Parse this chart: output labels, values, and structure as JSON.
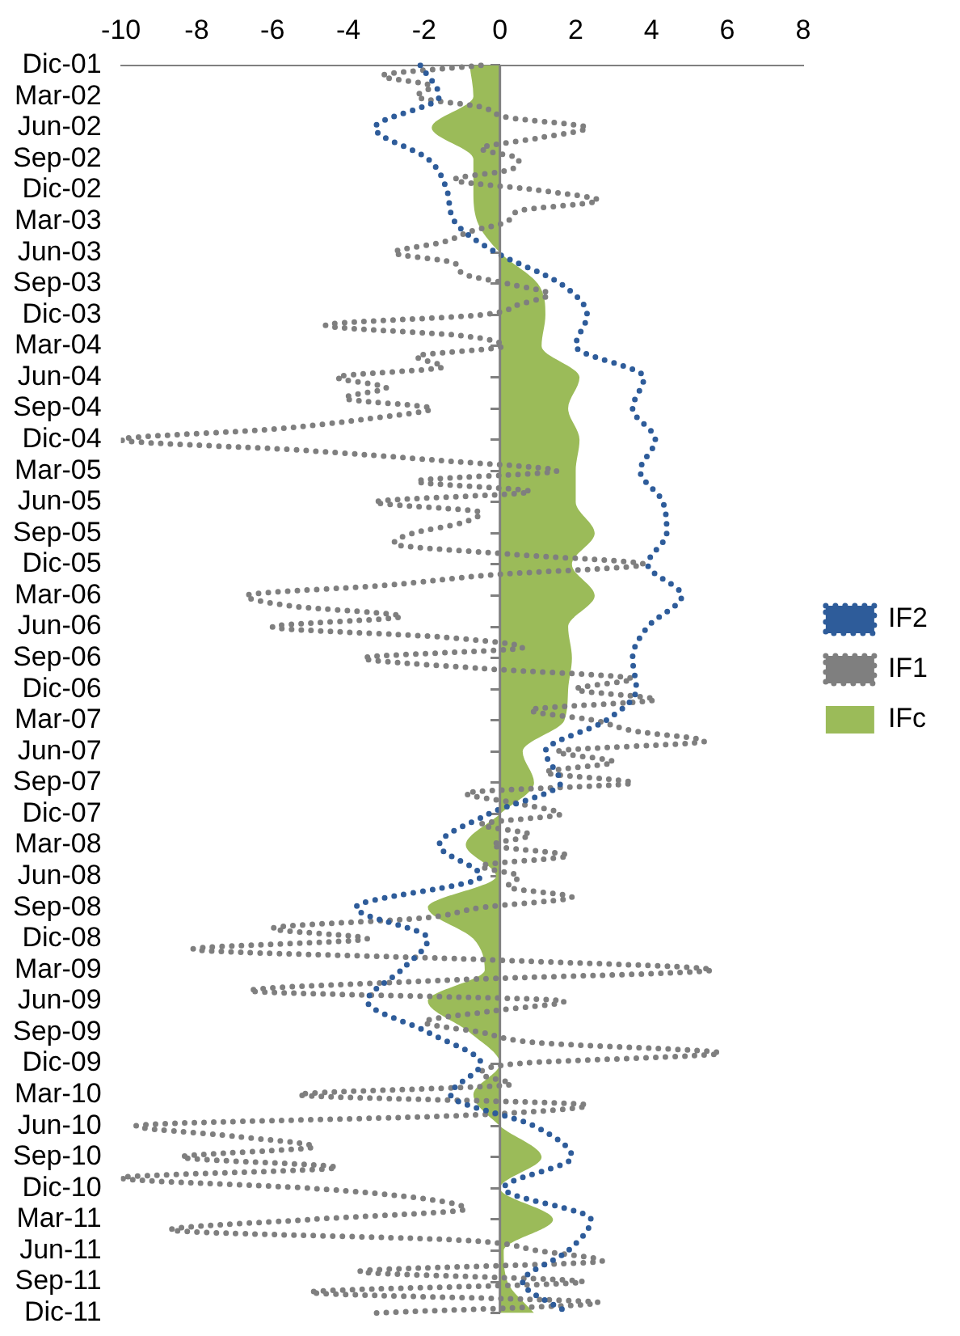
{
  "chart_data": {
    "type": "line",
    "orientation": "horizontal",
    "categories": [
      "Dic-01",
      null,
      null,
      "Mar-02",
      null,
      null,
      "Jun-02",
      null,
      null,
      "Sep-02",
      null,
      null,
      "Dic-02",
      null,
      null,
      "Mar-03",
      null,
      null,
      "Jun-03",
      null,
      null,
      "Sep-03",
      null,
      null,
      "Dic-03",
      null,
      null,
      "Mar-04",
      null,
      null,
      "Jun-04",
      null,
      null,
      "Sep-04",
      null,
      null,
      "Dic-04",
      null,
      null,
      "Mar-05",
      null,
      null,
      "Jun-05",
      null,
      null,
      "Sep-05",
      null,
      null,
      "Dic-05",
      null,
      null,
      "Mar-06",
      null,
      null,
      "Jun-06",
      null,
      null,
      "Sep-06",
      null,
      null,
      "Dic-06",
      null,
      null,
      "Mar-07",
      null,
      null,
      "Jun-07",
      null,
      null,
      "Sep-07",
      null,
      null,
      "Dic-07",
      null,
      null,
      "Mar-08",
      null,
      null,
      "Jun-08",
      null,
      null,
      "Sep-08",
      null,
      null,
      "Dic-08",
      null,
      null,
      "Mar-09",
      null,
      null,
      "Jun-09",
      null,
      null,
      "Sep-09",
      null,
      null,
      "Dic-09",
      null,
      null,
      "Mar-10",
      null,
      null,
      "Jun-10",
      null,
      null,
      "Sep-10",
      null,
      null,
      "Dic-10",
      null,
      null,
      "Mar-11",
      null,
      null,
      "Jun-11",
      null,
      null,
      "Sep-11",
      null,
      null,
      "Dic-11"
    ],
    "series": [
      {
        "name": "IFc",
        "type": "area",
        "color": "#9bbb59",
        "values": [
          -0.8,
          null,
          null,
          -0.7,
          null,
          null,
          -1.8,
          null,
          null,
          -0.7,
          null,
          null,
          -0.7,
          null,
          null,
          -0.6,
          null,
          null,
          0,
          null,
          null,
          1.0,
          null,
          null,
          1.2,
          null,
          null,
          1.1,
          null,
          null,
          2.1,
          null,
          null,
          1.8,
          null,
          null,
          2.1,
          null,
          null,
          2.0,
          null,
          null,
          2.0,
          null,
          null,
          2.5,
          null,
          null,
          1.9,
          null,
          null,
          2.5,
          null,
          null,
          1.8,
          null,
          null,
          1.9,
          null,
          null,
          1.8,
          null,
          null,
          1.7,
          null,
          null,
          0.6,
          null,
          null,
          0.9,
          null,
          null,
          0,
          null,
          null,
          -0.9,
          null,
          null,
          -0.1,
          null,
          null,
          -1.9,
          null,
          null,
          -0.7,
          null,
          null,
          -0.4,
          null,
          null,
          -1.9,
          null,
          null,
          -0.8,
          null,
          null,
          0,
          null,
          null,
          -0.7,
          null,
          null,
          0,
          null,
          null,
          1.1,
          null,
          null,
          0,
          null,
          null,
          1.4,
          null,
          null,
          0.1,
          null,
          null,
          0.2,
          null,
          null,
          0.9
        ]
      },
      {
        "name": "IF1",
        "type": "line",
        "color": "#7f7f7f",
        "line_style": "dotted",
        "values": [
          -0.5,
          -3.1,
          -1.8,
          -2.2,
          -0.5,
          0.2,
          2.3,
          1.0,
          -0.5,
          0.5,
          0.3,
          -1.2,
          1.0,
          2.6,
          0.5,
          0.2,
          -0.8,
          -1.5,
          -2.8,
          -1.2,
          -1.0,
          0.2,
          1.3,
          0.5,
          -0.5,
          -4.6,
          -1.0,
          0.1,
          -2.2,
          -1.5,
          -4.3,
          -3.0,
          -4.1,
          -1.8,
          -3.5,
          -6.0,
          -10.0,
          -5.3,
          -1.6,
          1.5,
          -2.2,
          0.8,
          -3.3,
          -0.5,
          -1.0,
          -2.3,
          -2.8,
          0.2,
          3.8,
          -0.2,
          -3.0,
          -6.7,
          -5.5,
          -2.6,
          -6.0,
          -1.5,
          0.6,
          -3.6,
          -0.5,
          3.5,
          2.0,
          4.1,
          0.8,
          2.5,
          3.5,
          5.4,
          1.5,
          3.0,
          1.2,
          3.5,
          -0.9,
          0.5,
          1.6,
          -0.5,
          0.8,
          -0.2,
          1.8,
          -0.5,
          0.5,
          0.2,
          1.9,
          -0.5,
          -2.0,
          -6.0,
          -3.5,
          -8.1,
          -0.5,
          5.6,
          -1.5,
          -6.6,
          1.7,
          -0.3,
          -2.0,
          -0.5,
          1.0,
          5.8,
          0.5,
          -0.5,
          0.3,
          -5.3,
          2.3,
          -1.0,
          -9.6,
          -7.0,
          -4.9,
          -8.4,
          -4.3,
          -10.0,
          -5.0,
          -2.0,
          -0.9,
          -5.0,
          -8.7,
          -1.0,
          1.0,
          2.7,
          -3.7,
          2.2,
          -5.0,
          2.6,
          -3.3
        ]
      },
      {
        "name": "IF2",
        "type": "line",
        "color": "#2e5c9a",
        "line_style": "dotted",
        "values": [
          -2.1,
          null,
          null,
          -1.6,
          null,
          null,
          -3.3,
          null,
          null,
          -1.9,
          null,
          null,
          -1.4,
          null,
          null,
          -1.2,
          null,
          null,
          -0.1,
          null,
          null,
          1.6,
          null,
          null,
          2.3,
          null,
          null,
          2.0,
          null,
          null,
          3.8,
          null,
          null,
          3.5,
          null,
          null,
          4.1,
          null,
          null,
          3.7,
          null,
          null,
          4.3,
          null,
          null,
          4.4,
          null,
          null,
          3.9,
          null,
          null,
          4.8,
          null,
          null,
          3.9,
          null,
          null,
          3.5,
          null,
          null,
          3.6,
          null,
          null,
          2.8,
          null,
          null,
          1.2,
          null,
          null,
          1.6,
          null,
          null,
          -0.3,
          null,
          null,
          -1.6,
          null,
          null,
          -0.5,
          null,
          null,
          -3.8,
          null,
          null,
          -1.9,
          null,
          null,
          -2.6,
          null,
          null,
          -3.5,
          null,
          null,
          -1.9,
          null,
          null,
          -0.5,
          null,
          null,
          -1.3,
          null,
          null,
          0.9,
          null,
          null,
          1.9,
          null,
          null,
          0.1,
          null,
          null,
          2.4,
          null,
          null,
          1.8,
          null,
          null,
          0.6,
          null,
          null,
          1.8
        ]
      }
    ],
    "xlim": [
      -10,
      8
    ],
    "xticks": [
      -10,
      -8,
      -6,
      -4,
      -2,
      0,
      2,
      4,
      6,
      8
    ],
    "ref_lines": [
      {
        "axis": "x",
        "value": 0,
        "color": "#808080"
      }
    ],
    "grid": false,
    "legend": "right",
    "marker": "none"
  }
}
